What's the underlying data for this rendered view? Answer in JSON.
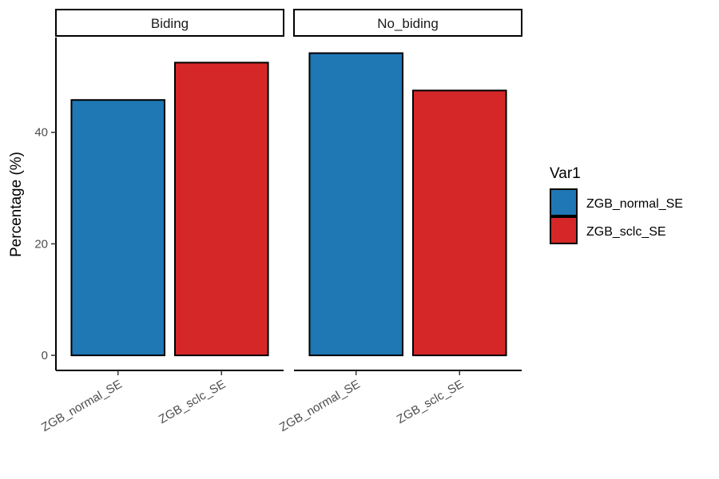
{
  "chart_data": {
    "type": "bar",
    "facets": [
      "Biding",
      "No_biding"
    ],
    "categories": [
      "ZGB_normal_SE",
      "ZGB_sclc_SE"
    ],
    "values": {
      "Biding": [
        45.8,
        52.5
      ],
      "No_biding": [
        54.2,
        47.5
      ]
    },
    "ylabel": "Percentage (%)",
    "xlabel": "",
    "ylim": [
      -2.7,
      57
    ],
    "yticks": [
      0,
      20,
      40
    ],
    "legend": {
      "title": "Var1",
      "position": "right",
      "items": [
        "ZGB_normal_SE",
        "ZGB_sclc_SE"
      ]
    },
    "colors": {
      "ZGB_normal_SE": "#1f77b4",
      "ZGB_sclc_SE": "#d62728"
    },
    "grid": false
  }
}
